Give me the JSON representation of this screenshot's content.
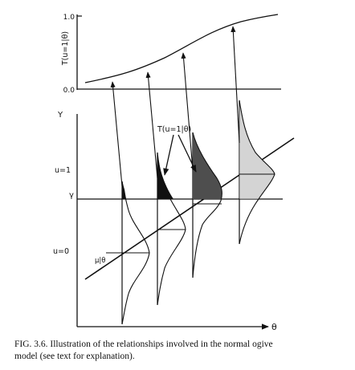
{
  "top_axis": {
    "ylabel": "T(u=1|θ)",
    "tick_top": "1.0",
    "tick_bottom": "0.0"
  },
  "main_axes": {
    "ylabel": "Y",
    "xlabel": "θ",
    "label_u1": "u=1",
    "label_gamma": "γ",
    "label_u0": "u=0",
    "label_mu": "μ|θ"
  },
  "annotation": "T(u=1|θ)",
  "caption": {
    "line1": "FIG. 3.6.   Illustration of the relationships involved in the normal ogive",
    "line2": "model (see text for explanation)."
  }
}
